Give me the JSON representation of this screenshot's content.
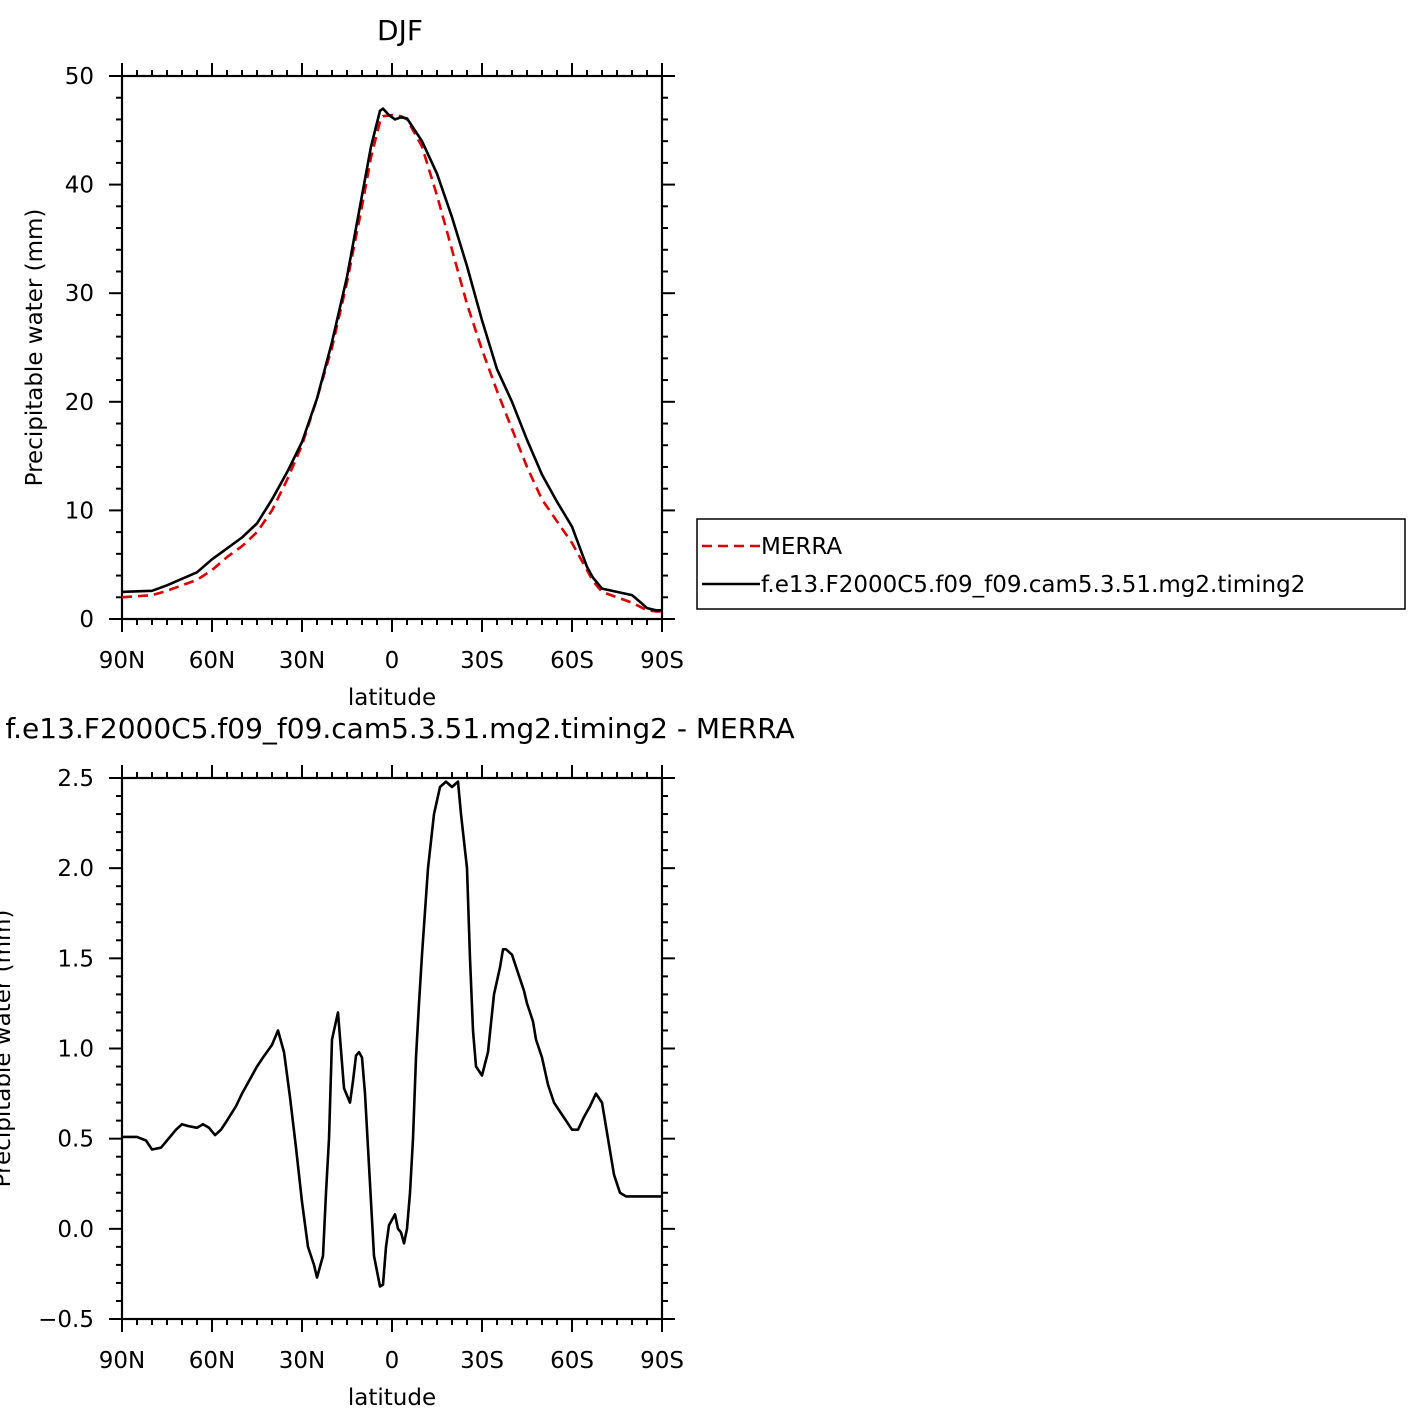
{
  "chart_data": [
    {
      "type": "line",
      "title": "DJF",
      "xlabel": "latitude",
      "ylabel": "Precipitable water (mm)",
      "xlim": [
        -90,
        90
      ],
      "ylim": [
        0,
        50
      ],
      "xticks": [
        -90,
        -60,
        -30,
        0,
        30,
        60,
        90
      ],
      "xtick_labels": [
        "90N",
        "60N",
        "30N",
        "0",
        "30S",
        "60S",
        "90S"
      ],
      "yticks": [
        0,
        10,
        20,
        30,
        40,
        50
      ],
      "ytick_labels": [
        "0",
        "10",
        "20",
        "30",
        "40",
        "50"
      ],
      "legend": {
        "placement": "right",
        "entries": [
          "MERRA",
          "f.e13.F2000C5.f09_f09.cam5.3.51.mg2.timing2"
        ]
      },
      "series": [
        {
          "name": "MERRA",
          "color": "#e00000",
          "dash": "dashed",
          "x": [
            -90,
            -80,
            -75,
            -70,
            -65,
            -60,
            -55,
            -50,
            -45,
            -40,
            -35,
            -30,
            -25,
            -20,
            -15,
            -10,
            -7,
            -4,
            -3,
            0,
            3,
            5,
            10,
            15,
            20,
            25,
            30,
            35,
            40,
            45,
            50,
            55,
            60,
            65,
            67,
            70,
            75,
            80,
            85,
            88,
            90
          ],
          "y": [
            2.0,
            2.2,
            2.6,
            3.1,
            3.6,
            4.5,
            5.7,
            6.7,
            8.0,
            10.0,
            12.8,
            16.0,
            20.3,
            25.0,
            31.0,
            38.0,
            42.5,
            45.8,
            46.3,
            46.4,
            46.3,
            46.0,
            43.5,
            39.0,
            34.0,
            29.0,
            24.8,
            21.0,
            17.5,
            14.0,
            11.0,
            9.0,
            7.0,
            4.5,
            3.5,
            2.5,
            2.0,
            1.5,
            0.8,
            0.7,
            0.7
          ]
        },
        {
          "name": "f.e13.F2000C5.f09_f09.cam5.3.51.mg2.timing2",
          "color": "#000000",
          "dash": "solid",
          "x": [
            -90,
            -80,
            -75,
            -70,
            -65,
            -60,
            -55,
            -50,
            -45,
            -40,
            -35,
            -30,
            -25,
            -20,
            -15,
            -10,
            -7,
            -4,
            -3,
            -1,
            1,
            3,
            5,
            10,
            15,
            20,
            25,
            30,
            35,
            40,
            45,
            50,
            55,
            60,
            65,
            67,
            70,
            75,
            80,
            83,
            85,
            88,
            90
          ],
          "y": [
            2.5,
            2.6,
            3.1,
            3.7,
            4.3,
            5.5,
            6.5,
            7.5,
            8.8,
            11.0,
            13.5,
            16.3,
            20.3,
            25.5,
            31.5,
            39.0,
            43.5,
            46.8,
            47.0,
            46.4,
            46.0,
            46.2,
            46.1,
            44.0,
            41.0,
            37.0,
            32.5,
            27.5,
            23.0,
            20.0,
            16.5,
            13.3,
            10.8,
            8.5,
            4.8,
            3.8,
            2.8,
            2.5,
            2.2,
            1.5,
            1.0,
            0.8,
            0.8
          ]
        }
      ]
    },
    {
      "type": "line",
      "title": "f.e13.F2000C5.f09_f09.cam5.3.51.mg2.timing2 - MERRA",
      "xlabel": "latitude",
      "ylabel": "Precipitable water (mm)",
      "xlim": [
        -90,
        90
      ],
      "ylim": [
        -0.5,
        2.5
      ],
      "xticks": [
        -90,
        -60,
        -30,
        0,
        30,
        60,
        90
      ],
      "xtick_labels": [
        "90N",
        "60N",
        "30N",
        "0",
        "30S",
        "60S",
        "90S"
      ],
      "yticks": [
        -0.5,
        0.0,
        0.5,
        1.0,
        1.5,
        2.0,
        2.5
      ],
      "ytick_labels": [
        "−0.5",
        "0.0",
        "0.5",
        "1.0",
        "1.5",
        "2.0",
        "2.5"
      ],
      "series": [
        {
          "color": "#000000",
          "dash": "solid",
          "x": [
            -90,
            -85,
            -82,
            -80,
            -77,
            -75,
            -72,
            -70,
            -68,
            -65,
            -63,
            -61,
            -59,
            -57,
            -55,
            -52,
            -50,
            -47,
            -45,
            -43,
            -40,
            -38,
            -36,
            -34,
            -32,
            -30,
            -28,
            -26,
            -25,
            -23,
            -22,
            -21,
            -20,
            -18,
            -16,
            -14,
            -13,
            -12,
            -11,
            -10,
            -9,
            -8,
            -6,
            -4,
            -3,
            -2,
            -1,
            0,
            1,
            2,
            3,
            4,
            5,
            6,
            7,
            8,
            9,
            10,
            12,
            14,
            16,
            18,
            20,
            22,
            23,
            25,
            26,
            27,
            28,
            30,
            32,
            34,
            36,
            37,
            38,
            40,
            42,
            44,
            45,
            46,
            47,
            48,
            50,
            52,
            54,
            56,
            58,
            60,
            62,
            64,
            66,
            68,
            70,
            72,
            74,
            75,
            76,
            78,
            79,
            80,
            82,
            84,
            86,
            88,
            90
          ],
          "y": [
            0.51,
            0.51,
            0.49,
            0.44,
            0.45,
            0.49,
            0.55,
            0.58,
            0.57,
            0.56,
            0.58,
            0.56,
            0.52,
            0.55,
            0.6,
            0.68,
            0.75,
            0.84,
            0.9,
            0.95,
            1.02,
            1.1,
            0.98,
            0.73,
            0.45,
            0.15,
            -0.1,
            -0.2,
            -0.27,
            -0.15,
            0.2,
            0.5,
            1.05,
            1.2,
            0.78,
            0.7,
            0.82,
            0.96,
            0.98,
            0.95,
            0.75,
            0.45,
            -0.15,
            -0.32,
            -0.31,
            -0.1,
            0.02,
            0.05,
            0.08,
            0.0,
            -0.02,
            -0.08,
            0.0,
            0.2,
            0.5,
            0.95,
            1.25,
            1.52,
            2.0,
            2.3,
            2.45,
            2.48,
            2.45,
            2.48,
            2.3,
            2.0,
            1.5,
            1.1,
            0.9,
            0.85,
            0.98,
            1.3,
            1.45,
            1.55,
            1.55,
            1.52,
            1.42,
            1.32,
            1.25,
            1.2,
            1.15,
            1.05,
            0.95,
            0.8,
            0.7,
            0.65,
            0.6,
            0.55,
            0.55,
            0.62,
            0.68,
            0.75,
            0.7,
            0.5,
            0.3,
            0.25,
            0.2,
            0.18,
            0.18,
            0.18,
            0.18,
            0.18,
            0.18,
            0.18,
            0.18
          ]
        }
      ]
    }
  ]
}
